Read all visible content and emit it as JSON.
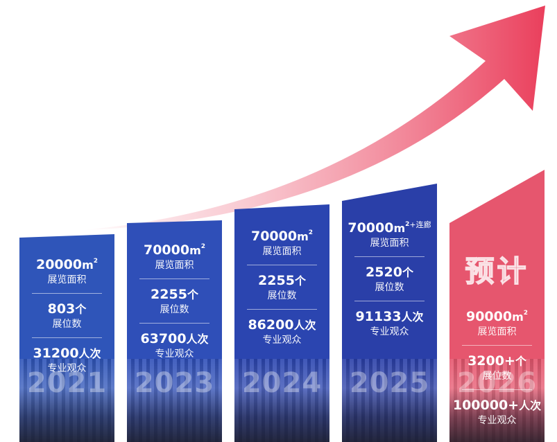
{
  "chart_data": {
    "type": "bar",
    "title": "",
    "categories": [
      "2021",
      "2023",
      "2024",
      "2025",
      "2026"
    ],
    "series": [
      {
        "values": [
          20000,
          70000,
          70000,
          70000,
          90000
        ]
      },
      {
        "values": [
          803,
          2255,
          2255,
          2520,
          3200
        ]
      },
      {
        "values": [
          31200,
          63700,
          86200,
          91133,
          100000
        ]
      }
    ],
    "columns": [
      {
        "year": "2021",
        "color": "#2f55b9",
        "area": {
          "value": "20000",
          "unit": "m",
          "sup": "2",
          "extra": ""
        },
        "area_label": "展览面积",
        "booths": {
          "value": "803",
          "unit": "个"
        },
        "booth_label": "展位数",
        "visitors": {
          "value": "31200",
          "unit": "人次"
        },
        "visitor_label": "专业观众",
        "badge": ""
      },
      {
        "year": "2023",
        "color": "#2f4fb8",
        "area": {
          "value": "70000",
          "unit": "m",
          "sup": "2",
          "extra": ""
        },
        "area_label": "展览面积",
        "booths": {
          "value": "2255",
          "unit": "个"
        },
        "booth_label": "展位数",
        "visitors": {
          "value": "63700",
          "unit": "人次"
        },
        "visitor_label": "专业观众",
        "badge": ""
      },
      {
        "year": "2024",
        "color": "#2b45b0",
        "area": {
          "value": "70000",
          "unit": "m",
          "sup": "2",
          "extra": ""
        },
        "area_label": "展览面积",
        "booths": {
          "value": "2255",
          "unit": "个"
        },
        "booth_label": "展位数",
        "visitors": {
          "value": "86200",
          "unit": "人次"
        },
        "visitor_label": "专业观众",
        "badge": ""
      },
      {
        "year": "2025",
        "color": "#2a3fa8",
        "area": {
          "value": "70000",
          "unit": "m",
          "sup": "2",
          "extra": "+连廊"
        },
        "area_label": "展览面积",
        "booths": {
          "value": "2520",
          "unit": "个"
        },
        "booth_label": "展位数",
        "visitors": {
          "value": "91133",
          "unit": "人次"
        },
        "visitor_label": "专业观众",
        "badge": ""
      },
      {
        "year": "2026",
        "color": "#e6566e",
        "area": {
          "value": "90000",
          "unit": "m",
          "sup": "2",
          "extra": ""
        },
        "area_label": "展览面积",
        "booths": {
          "value": "3200+",
          "unit": "个"
        },
        "booth_label": "展位数",
        "visitors": {
          "value": "100000+",
          "unit": "人次"
        },
        "visitor_label": "专业观众",
        "badge": "预计"
      }
    ]
  },
  "colors": {
    "arrow": "#ea3f5c",
    "blue": "#2f4fb8",
    "red": "#e6566e"
  }
}
